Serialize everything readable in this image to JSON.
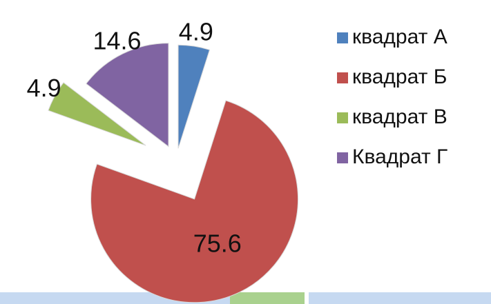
{
  "chart_data": {
    "type": "pie",
    "categories": [
      "квадрат А",
      "квадрат Б",
      "квадрат В",
      "Квадрат Г"
    ],
    "values": [
      4.9,
      75.6,
      4.9,
      14.6
    ],
    "colors": [
      "#4f81bd",
      "#c0504d",
      "#9bbb59",
      "#8064a2"
    ],
    "legend": "right"
  }
}
